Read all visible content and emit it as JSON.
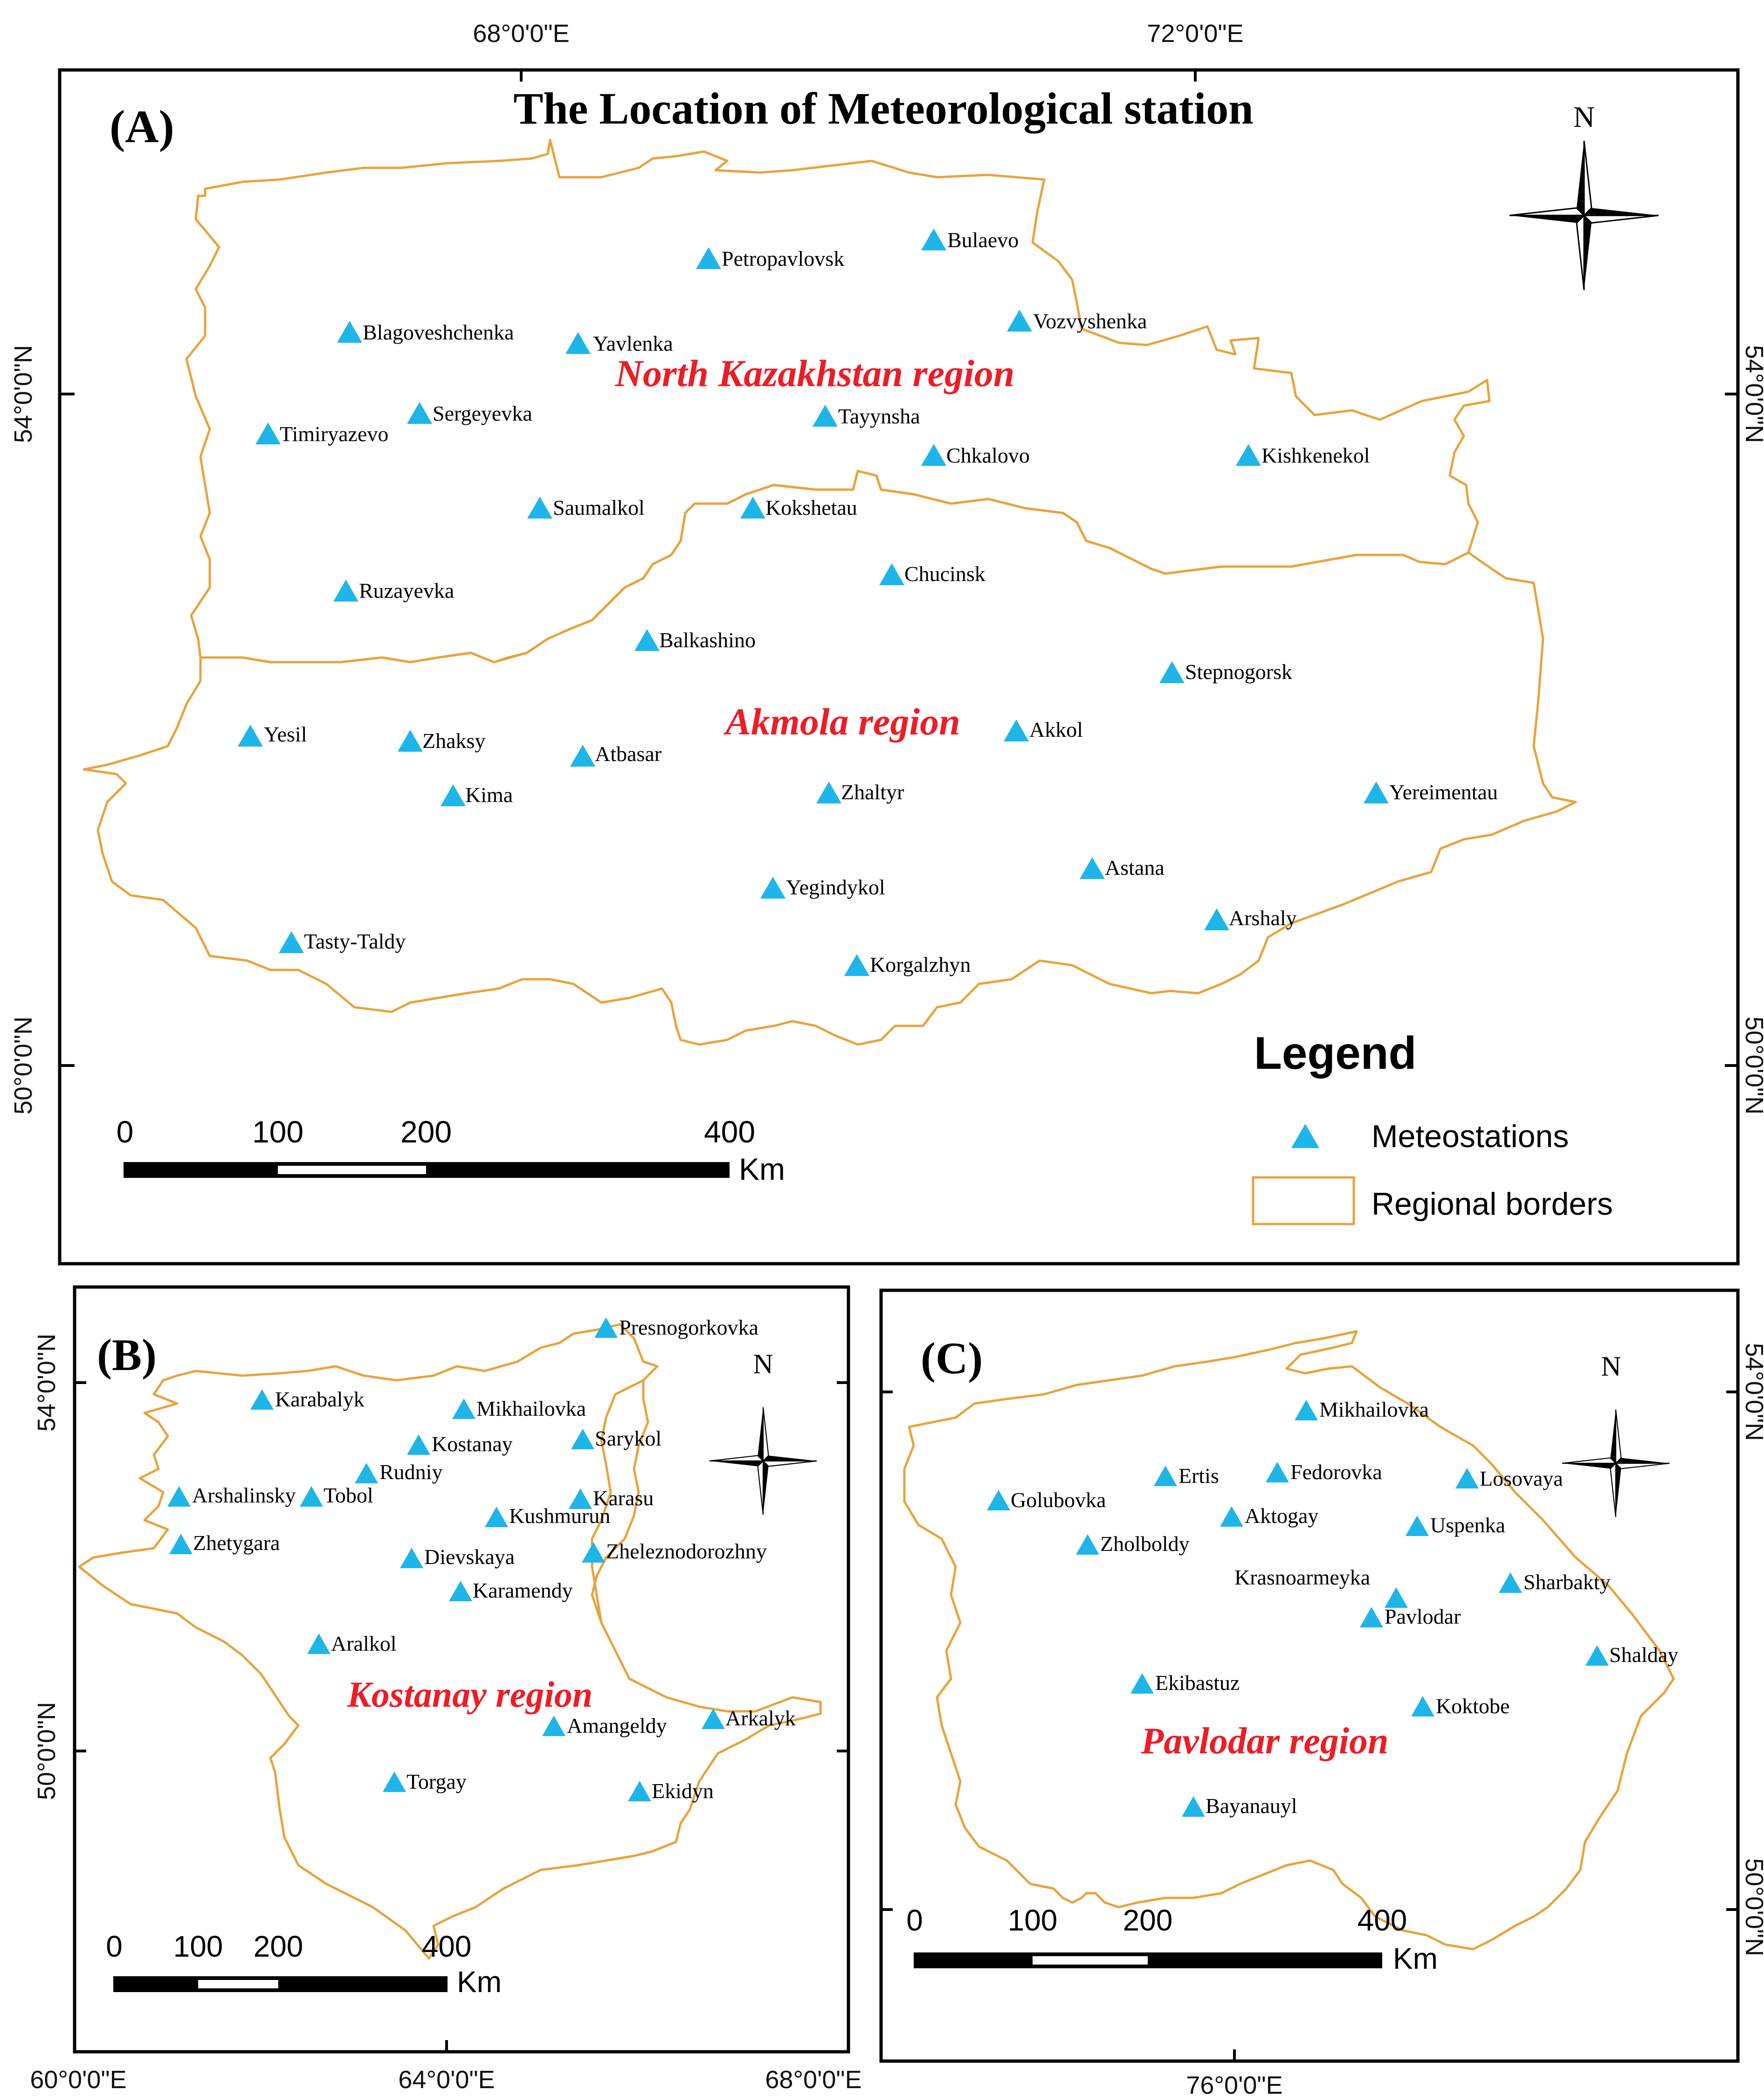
{
  "title": "The Location of Meteorological station",
  "legend": {
    "heading": "Legend",
    "items": [
      {
        "label": "Meteostations",
        "icon": "triangle-icon",
        "color": "#1EB6E8"
      },
      {
        "label": "Regional borders",
        "icon": "outline-box-icon",
        "color": "#E8A33D"
      }
    ]
  },
  "north_label": "N",
  "panels": [
    {
      "letter": "(A)",
      "regions": [
        "North Kazakhstan region",
        "Akmola region"
      ],
      "top_coords": [
        "68°0'0\"E",
        "72°0'0\"E"
      ],
      "side_coords": [
        "54°0'0\"N",
        "50°0'0\"N"
      ],
      "scale": {
        "ticks": [
          "0",
          "100",
          "200",
          "400"
        ],
        "unit": "Km"
      },
      "stations": [
        "Bulaevo",
        "Petropavlovsk",
        "Blagoveshchenka",
        "Yavlenka",
        "Vozvyshenka",
        "Timiryazevo",
        "Sergeyevka",
        "Tayynsha",
        "Chkalovo",
        "Kishkenekol",
        "Saumalkol",
        "Kokshetau",
        "Ruzayevka",
        "Chucinsk",
        "Balkashino",
        "Stepnogorsk",
        "Yesil",
        "Zhaksy",
        "Atbasar",
        "Akkol",
        "Kima",
        "Zhaltyr",
        "Yereimentau",
        "Astana",
        "Yegindykol",
        "Arshaly",
        "Tasty-Taldy",
        "Korgalzhyn"
      ]
    },
    {
      "letter": "(B)",
      "regions": [
        "Kostanay region"
      ],
      "bottom_coords": [
        "60°0'0\"E",
        "64°0'0\"E",
        "68°0'0\"E"
      ],
      "side_coords": [
        "54°0'0\"N",
        "50°0'0\"N"
      ],
      "scale": {
        "ticks": [
          "0",
          "100",
          "200",
          "400"
        ],
        "unit": "Km"
      },
      "stations": [
        "Presnogorkovka",
        "Karabalyk",
        "Mikhailovka",
        "Kostanay",
        "Sarykol",
        "Rudniy",
        "Arshalinsky",
        "Tobol",
        "Karasu",
        "Kushmurun",
        "Zhetygara",
        "Dievskaya",
        "Zheleznodorozhny",
        "Karamendy",
        "Aralkol",
        "Amangeldy",
        "Arkalyk",
        "Torgay",
        "Ekidyn"
      ]
    },
    {
      "letter": "(C)",
      "regions": [
        "Pavlodar region"
      ],
      "bottom_coords": [
        "76°0'0\"E"
      ],
      "side_coords": [
        "54°0'0\"N",
        "50°0'0\"N"
      ],
      "scale": {
        "ticks": [
          "0",
          "100",
          "200",
          "400"
        ],
        "unit": "Km"
      },
      "stations": [
        "Mikhailovka",
        "Ertis",
        "Fedorovka",
        "Losovaya",
        "Golubovka",
        "Aktogay",
        "Uspenka",
        "Zholboldy",
        "Krasnoarmeyka",
        "Sharbakty",
        "Pavlodar",
        "Shalday",
        "Ekibastuz",
        "Koktobe",
        "Bayanauyl"
      ]
    }
  ]
}
